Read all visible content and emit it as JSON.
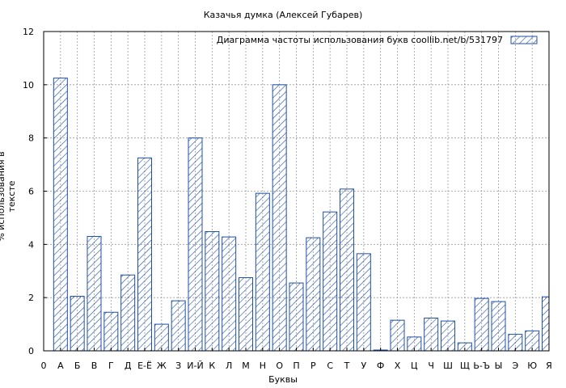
{
  "chart_data": {
    "type": "bar",
    "title": "Казачья думка (Алексей Губарев)",
    "xlabel": "Буквы",
    "ylabel": "% использования в тексте",
    "legend": "Диаграмма частоты использования букв  coollib.net/b/531797",
    "legend_position": "top-right",
    "grid": true,
    "ylim": [
      0,
      12
    ],
    "yticks": [
      0,
      2,
      4,
      6,
      8,
      10,
      12
    ],
    "bar_color": "#1f4fa6",
    "categories": [
      "0",
      "А",
      "Б",
      "В",
      "Г",
      "Д",
      "Е-Ё",
      "Ж",
      "З",
      "И-Й",
      "К",
      "Л",
      "М",
      "Н",
      "О",
      "П",
      "Р",
      "С",
      "Т",
      "У",
      "Ф",
      "Х",
      "Ц",
      "Ч",
      "Ш",
      "Щ",
      "Ь-Ъ",
      "Ы",
      "Э",
      "Ю",
      "Я"
    ],
    "values": [
      0,
      10.25,
      2.05,
      4.3,
      1.45,
      2.85,
      7.25,
      1.0,
      1.88,
      8.0,
      4.48,
      4.28,
      2.75,
      5.92,
      10.0,
      2.55,
      4.25,
      5.22,
      6.08,
      3.65,
      0.03,
      1.15,
      0.52,
      1.23,
      1.12,
      0.3,
      1.97,
      1.85,
      0.62,
      0.75,
      2.03
    ]
  }
}
